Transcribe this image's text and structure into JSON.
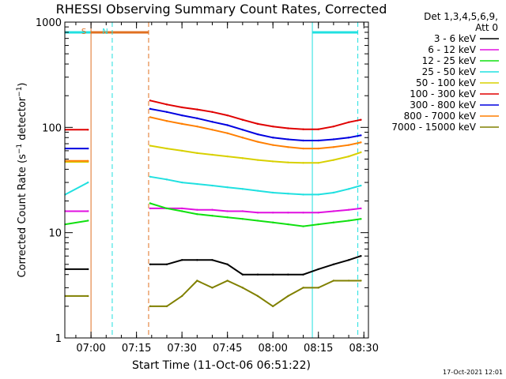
{
  "chart_data": {
    "type": "line",
    "title": "RHESSI Observing Summary Count Rates, Corrected",
    "xlabel": "Start Time (11-Oct-06 06:51:22)",
    "ylabel": "Corrected Count Rate (s⁻¹ detector⁻¹)",
    "yscale": "log",
    "xlim": [
      "06:51:22",
      "08:31:30"
    ],
    "ylim": [
      1,
      1000
    ],
    "xticks": [
      "07:00",
      "07:15",
      "07:30",
      "07:45",
      "08:00",
      "08:15",
      "08:30"
    ],
    "yticks": [
      "1",
      "10",
      "100",
      "1000"
    ],
    "data_gap": [
      "07:00",
      "07:19"
    ],
    "legend_header": [
      "Det 1,3,4,5,6,9,",
      "Att 0"
    ],
    "legend_position": "right",
    "series": [
      {
        "name": "3 - 6 keV",
        "color": "#000000",
        "x": [
          "06:51:30",
          "06:59:00",
          "07:19:30",
          "07:25",
          "07:30",
          "07:35",
          "07:40",
          "07:45",
          "07:50",
          "07:55",
          "08:00",
          "08:05",
          "08:10",
          "08:15",
          "08:20",
          "08:25",
          "08:29"
        ],
        "values": [
          4.5,
          4.5,
          5.0,
          5.0,
          5.5,
          5.5,
          5.5,
          5.0,
          4.0,
          4.0,
          4.0,
          4.0,
          4.0,
          4.5,
          5.0,
          5.5,
          6.0
        ]
      },
      {
        "name": "6 - 12 keV",
        "color": "#e010e0",
        "x": [
          "06:51:30",
          "06:59:00",
          "07:19:30",
          "07:25",
          "07:30",
          "07:35",
          "07:40",
          "07:45",
          "07:50",
          "07:55",
          "08:00",
          "08:05",
          "08:10",
          "08:15",
          "08:20",
          "08:25",
          "08:29"
        ],
        "values": [
          16,
          16,
          17,
          17,
          17,
          16.5,
          16.5,
          16,
          16,
          15.5,
          15.5,
          15.5,
          15.5,
          15.5,
          16,
          16.5,
          17
        ]
      },
      {
        "name": "12 - 25 keV",
        "color": "#10e010",
        "x": [
          "06:51:30",
          "06:59:00",
          "07:19:30",
          "07:25",
          "07:30",
          "07:35",
          "07:40",
          "07:45",
          "07:50",
          "07:55",
          "08:00",
          "08:05",
          "08:10",
          "08:15",
          "08:20",
          "08:25",
          "08:29"
        ],
        "values": [
          12,
          13,
          19,
          17,
          16,
          15,
          14.5,
          14,
          13.5,
          13,
          12.5,
          12,
          11.5,
          12,
          12.5,
          13,
          13.5
        ]
      },
      {
        "name": "25 - 50 keV",
        "color": "#20e0e0",
        "x": [
          "06:51:30",
          "06:59:00",
          "07:19:30",
          "07:25",
          "07:30",
          "07:35",
          "07:40",
          "07:45",
          "07:50",
          "07:55",
          "08:00",
          "08:05",
          "08:10",
          "08:15",
          "08:20",
          "08:25",
          "08:29"
        ],
        "values": [
          23,
          30,
          34,
          32,
          30,
          29,
          28,
          27,
          26,
          25,
          24,
          23.5,
          23,
          23,
          24,
          26,
          28
        ]
      },
      {
        "name": "50 - 100 keV",
        "color": "#d8d000",
        "x": [
          "06:51:30",
          "06:59:00",
          "07:19:30",
          "07:25",
          "07:30",
          "07:35",
          "07:40",
          "07:45",
          "07:50",
          "07:55",
          "08:00",
          "08:05",
          "08:10",
          "08:15",
          "08:20",
          "08:25",
          "08:29"
        ],
        "values": [
          47,
          47,
          67,
          63,
          60,
          57,
          55,
          53,
          51,
          49,
          47.5,
          46.5,
          46,
          46,
          49,
          53,
          58
        ]
      },
      {
        "name": "100 - 300 keV",
        "color": "#e00000",
        "x": [
          "06:51:30",
          "06:59:00",
          "07:19:30",
          "07:25",
          "07:30",
          "07:35",
          "07:40",
          "07:45",
          "07:50",
          "07:55",
          "08:00",
          "08:05",
          "08:10",
          "08:15",
          "08:20",
          "08:25",
          "08:29"
        ],
        "values": [
          95,
          95,
          180,
          165,
          155,
          148,
          140,
          130,
          118,
          108,
          102,
          98,
          96,
          96,
          102,
          112,
          118
        ]
      },
      {
        "name": "300 - 800 keV",
        "color": "#0000e0",
        "x": [
          "06:51:30",
          "06:59:00",
          "07:19:30",
          "07:25",
          "07:30",
          "07:35",
          "07:40",
          "07:45",
          "07:50",
          "07:55",
          "08:00",
          "08:05",
          "08:10",
          "08:15",
          "08:20",
          "08:25",
          "08:29"
        ],
        "values": [
          63,
          63,
          150,
          140,
          130,
          122,
          113,
          105,
          95,
          86,
          80,
          77,
          75,
          75,
          77,
          80,
          84
        ]
      },
      {
        "name": "800 - 7000 keV",
        "color": "#ff7f00",
        "x": [
          "06:51:30",
          "06:59:00",
          "07:19:30",
          "07:25",
          "07:30",
          "07:35",
          "07:40",
          "07:45",
          "07:50",
          "07:55",
          "08:00",
          "08:05",
          "08:10",
          "08:15",
          "08:20",
          "08:25",
          "08:29"
        ],
        "values": [
          48,
          48,
          125,
          115,
          108,
          102,
          95,
          88,
          80,
          73,
          68,
          65,
          63,
          63,
          65,
          68,
          72
        ]
      },
      {
        "name": "7000 - 15000 keV",
        "color": "#808000",
        "x": [
          "06:51:30",
          "06:59:00",
          "07:19:30",
          "07:25",
          "07:30",
          "07:35",
          "07:40",
          "07:45",
          "07:50",
          "07:55",
          "08:00",
          "08:05",
          "08:10",
          "08:15",
          "08:20",
          "08:25",
          "08:29"
        ],
        "values": [
          2.5,
          2.5,
          2.0,
          2.0,
          2.5,
          3.5,
          3.0,
          3.5,
          3.0,
          2.5,
          2.0,
          2.5,
          3.0,
          3.0,
          3.5,
          3.5,
          3.5
        ]
      }
    ],
    "markers": [
      {
        "label": "S",
        "color": "#e07020",
        "at": "07:00",
        "style": "solid"
      },
      {
        "label": "",
        "color": "#e07020",
        "at": "07:19",
        "style": "dashed"
      },
      {
        "label": "N",
        "color": "#20e0e0",
        "at": "07:07",
        "style": "dashed"
      },
      {
        "label": "",
        "color": "#20e0e0",
        "at": "08:13",
        "style": "solid"
      },
      {
        "label": "",
        "color": "#20e0e0",
        "at": "08:28",
        "style": "dashed"
      }
    ],
    "top_bars": [
      {
        "color": "#20e0e0",
        "from": "06:51:22",
        "to": "07:07"
      },
      {
        "color": "#e07020",
        "from": "07:00",
        "to": "07:19"
      },
      {
        "color": "#20e0e0",
        "from": "08:13",
        "to": "08:28"
      }
    ]
  },
  "footer_date": "17-Oct-2021 12:01"
}
